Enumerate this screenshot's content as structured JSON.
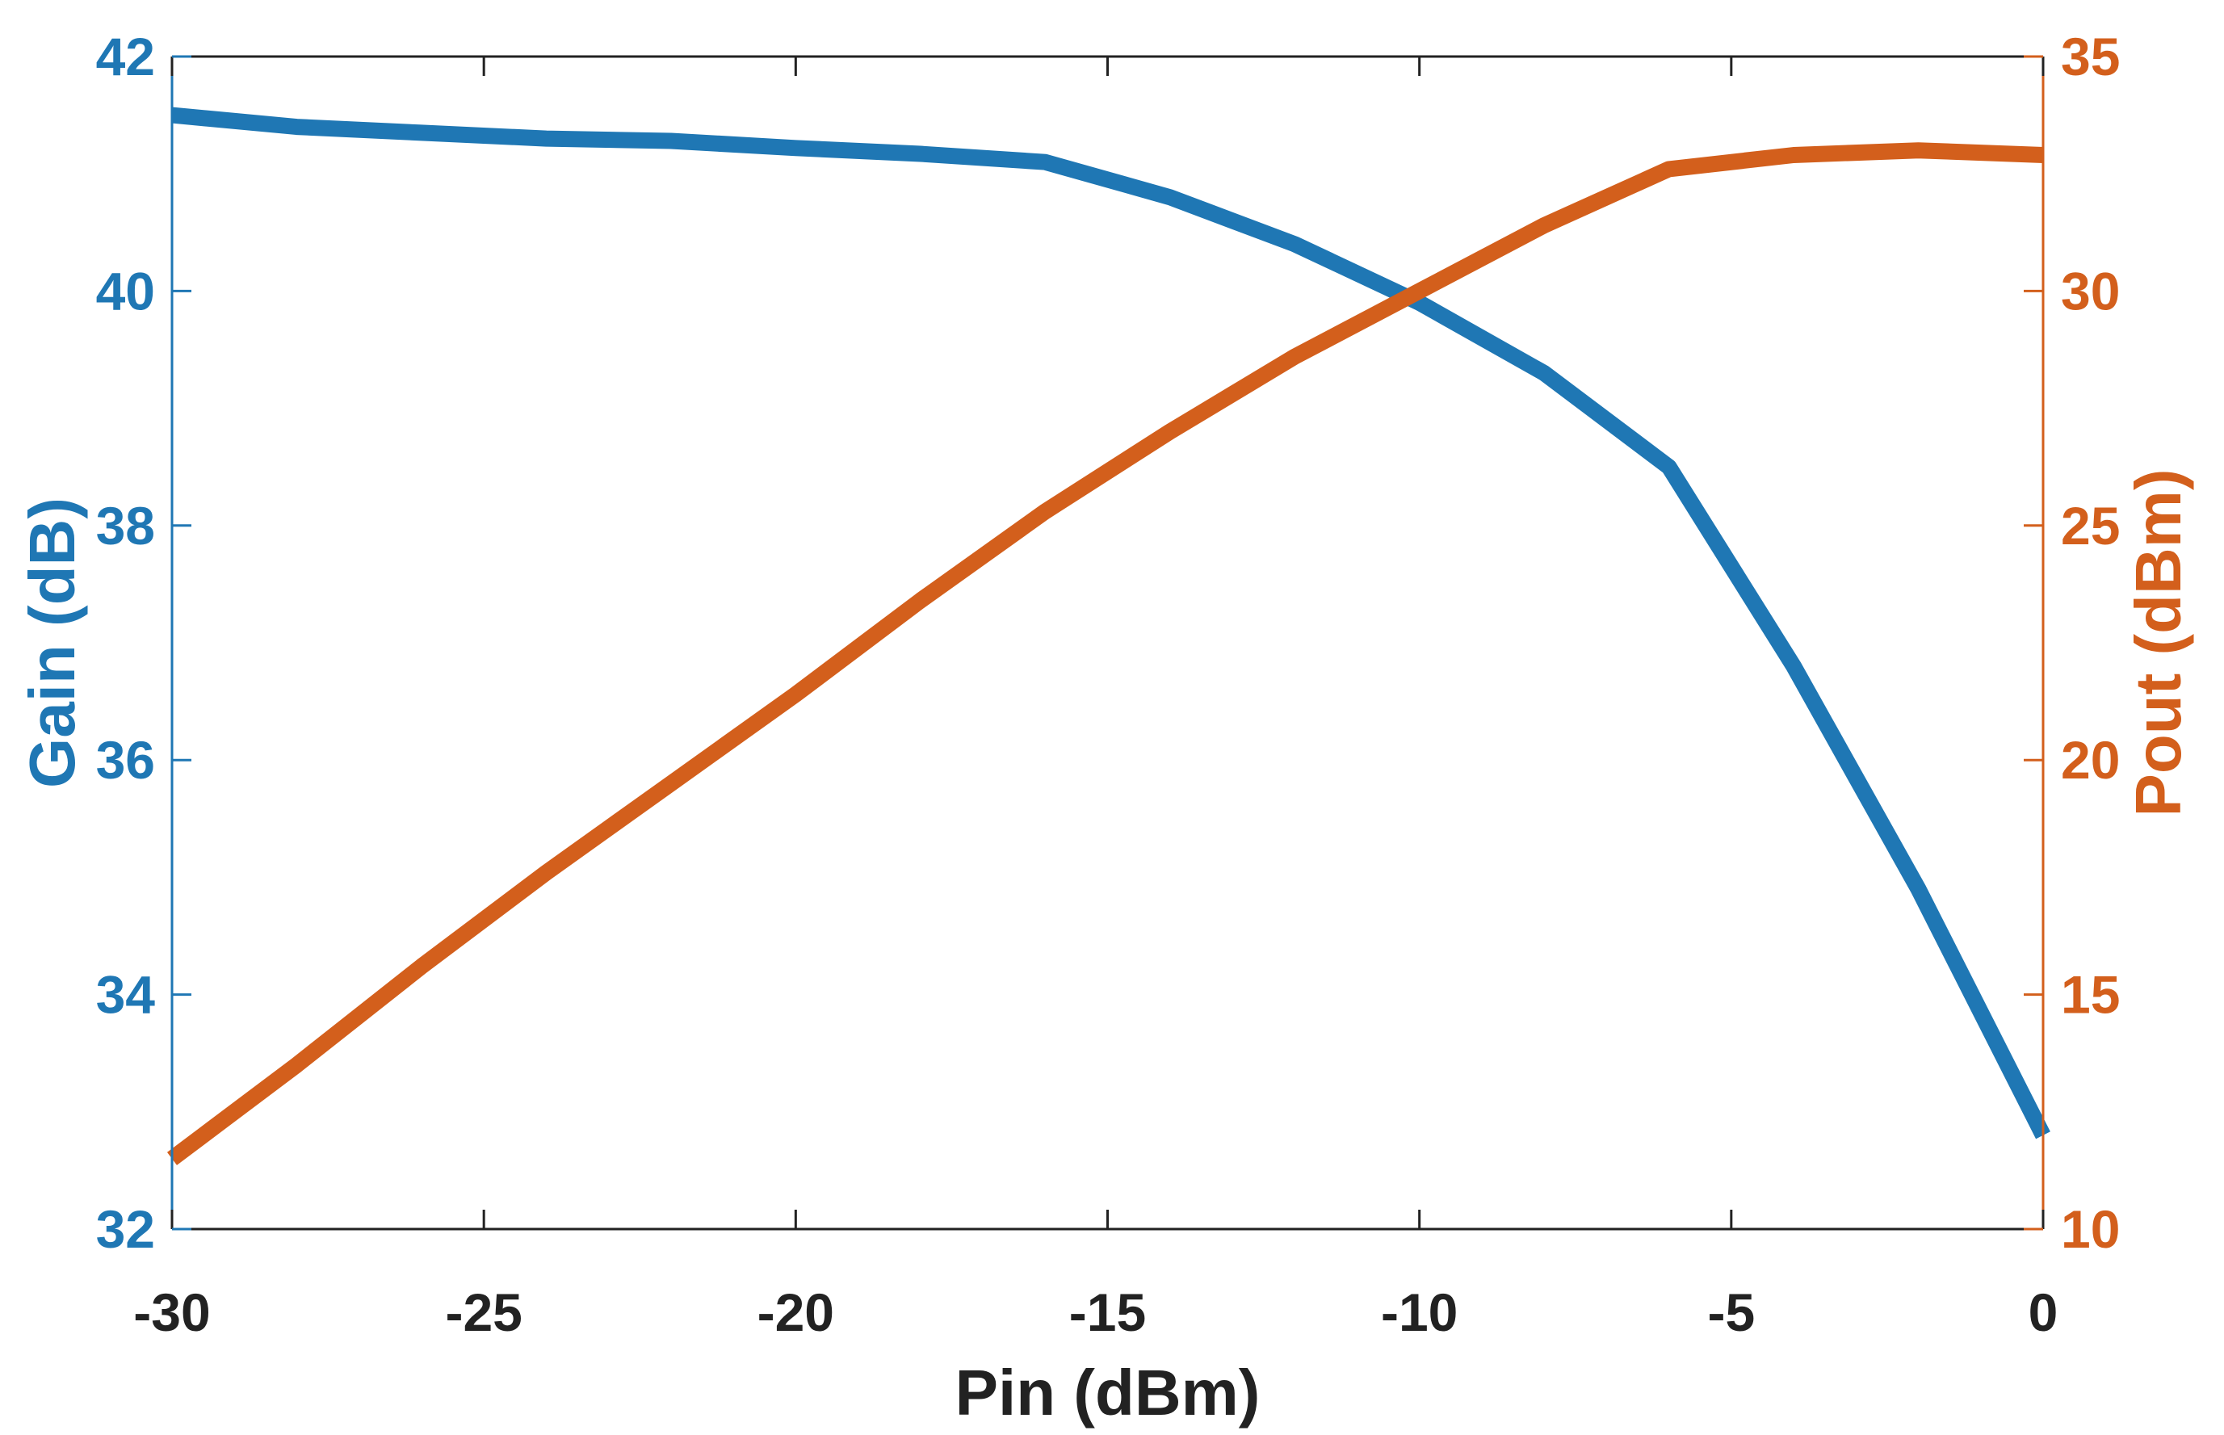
{
  "chart_data": {
    "type": "line",
    "title": "",
    "xlabel": "Pin (dBm)",
    "ylabel": "Gain (dB)",
    "y2label": "Pout (dBm)",
    "xlim": [
      -30,
      0
    ],
    "ylim": [
      32,
      42
    ],
    "y2lim": [
      10,
      35
    ],
    "xticks": [
      "-30",
      "-25",
      "-20",
      "-15",
      "-10",
      "-5",
      "0"
    ],
    "yticks": [
      "32",
      "34",
      "36",
      "38",
      "40",
      "42"
    ],
    "y2ticks": [
      "10",
      "15",
      "20",
      "25",
      "30",
      "35"
    ],
    "grid": false,
    "colors": {
      "gain": "#1f77b4",
      "pout": "#d35f1c",
      "axis": "#222222"
    },
    "series": [
      {
        "name": "Gain",
        "axis": "left",
        "x": [
          -30,
          -28,
          -26,
          -24,
          -22,
          -20,
          -18,
          -16,
          -14,
          -12,
          -10,
          -8,
          -6,
          -4,
          -2,
          0
        ],
        "values": [
          41.5,
          41.4,
          41.35,
          41.3,
          41.28,
          41.22,
          41.17,
          41.1,
          40.8,
          40.4,
          39.9,
          39.3,
          38.5,
          36.8,
          34.9,
          32.8
        ]
      },
      {
        "name": "Pout",
        "axis": "right",
        "x": [
          -30,
          -28,
          -26,
          -24,
          -22,
          -20,
          -18,
          -16,
          -14,
          -12,
          -10,
          -8,
          -6,
          -4,
          -2,
          0
        ],
        "values": [
          11.5,
          13.5,
          15.6,
          17.6,
          19.5,
          21.4,
          23.4,
          25.3,
          27.0,
          28.6,
          30.0,
          31.4,
          32.6,
          32.9,
          33.0,
          32.9
        ]
      }
    ]
  }
}
